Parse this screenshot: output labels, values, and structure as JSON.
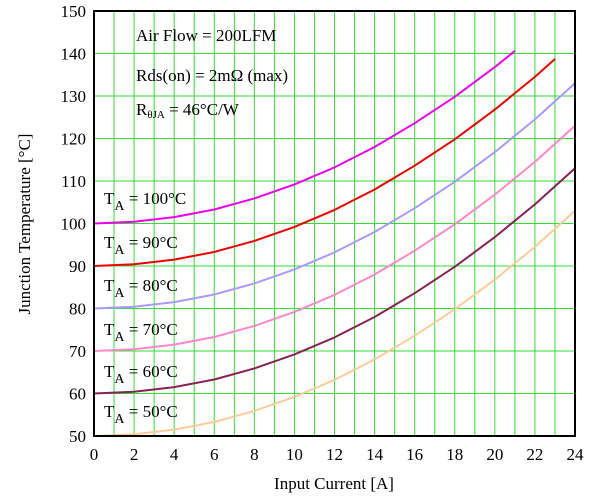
{
  "chart_data": {
    "type": "line",
    "xlabel": "Input Current [A]",
    "ylabel": "Junction Temperature [°C]",
    "xlim": [
      0,
      24
    ],
    "ylim": [
      50,
      150
    ],
    "x_ticks": [
      "0",
      "2",
      "4",
      "6",
      "8",
      "10",
      "12",
      "14",
      "16",
      "18",
      "20",
      "22",
      "24"
    ],
    "y_ticks": [
      "50",
      "60",
      "70",
      "80",
      "90",
      "100",
      "110",
      "120",
      "130",
      "140",
      "150"
    ],
    "grid": true,
    "annotations": [
      "Air Flow = 200LFM",
      "Rds(on) = 2mΩ (max)",
      "RθJA = 46°C/W"
    ],
    "series": [
      {
        "label_prefix": "T",
        "label_sub": "A",
        "label_rest": " = 100°C",
        "ta": 100,
        "color": "#ee00ee",
        "x": [
          0,
          2,
          4,
          6,
          8,
          10,
          12,
          14,
          16,
          18,
          20,
          21
        ],
        "y": [
          100,
          100.4,
          101.5,
          103.3,
          105.9,
          109.2,
          113.2,
          118,
          123.6,
          129.8,
          136.8,
          140.6
        ]
      },
      {
        "label_prefix": "T",
        "label_sub": "A",
        "label_rest": " = 90°C",
        "ta": 90,
        "color": "#ee0000",
        "x": [
          0,
          2,
          4,
          6,
          8,
          10,
          12,
          14,
          16,
          18,
          20,
          22,
          23
        ],
        "y": [
          90,
          90.4,
          91.5,
          93.3,
          95.9,
          99.2,
          103.2,
          108,
          113.6,
          119.8,
          126.8,
          134.5,
          138.7
        ]
      },
      {
        "label_prefix": "T",
        "label_sub": "A",
        "label_rest": " = 80°C",
        "ta": 80,
        "color": "#aa99ff",
        "x": [
          0,
          2,
          4,
          6,
          8,
          10,
          12,
          14,
          16,
          18,
          20,
          22,
          24
        ],
        "y": [
          80,
          80.4,
          81.5,
          83.3,
          85.9,
          89.2,
          93.2,
          98,
          103.6,
          109.8,
          116.8,
          124.5,
          133
        ]
      },
      {
        "label_prefix": "T",
        "label_sub": "A",
        "label_rest": " = 70°C",
        "ta": 70,
        "color": "#ff88cc",
        "x": [
          0,
          2,
          4,
          6,
          8,
          10,
          12,
          14,
          16,
          18,
          20,
          22,
          24
        ],
        "y": [
          70,
          70.4,
          71.5,
          73.3,
          75.9,
          79.2,
          83.2,
          88,
          93.6,
          99.8,
          106.8,
          114.5,
          123
        ]
      },
      {
        "label_prefix": "T",
        "label_sub": "A",
        "label_rest": " = 60°C",
        "ta": 60,
        "color": "#882255",
        "x": [
          0,
          2,
          4,
          6,
          8,
          10,
          12,
          14,
          16,
          18,
          20,
          22,
          24
        ],
        "y": [
          60,
          60.4,
          61.5,
          63.3,
          65.9,
          69.2,
          73.2,
          78,
          83.6,
          89.8,
          96.8,
          104.5,
          113
        ]
      },
      {
        "label_prefix": "T",
        "label_sub": "A",
        "label_rest": " = 50°C",
        "ta": 50,
        "color": "#ffcc99",
        "x": [
          0,
          2,
          4,
          6,
          8,
          10,
          12,
          14,
          16,
          18,
          20,
          22,
          24
        ],
        "y": [
          50,
          50.4,
          51.5,
          53.3,
          55.9,
          59.2,
          63.2,
          68,
          73.6,
          79.8,
          86.8,
          94.5,
          103
        ]
      }
    ]
  }
}
